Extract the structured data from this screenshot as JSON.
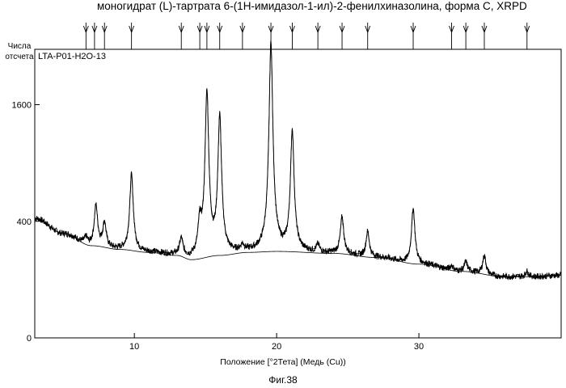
{
  "title": "моногидрат (L)-тартрата 6-(1Н-имидазол-1-ил)-2-фенилхиназолина, форма С, XRPD",
  "caption": "Фиг.38",
  "chart_data": {
    "type": "line",
    "title": "моногидрат (L)-тартрата 6-(1Н-имидазол-1-ил)-2-фенилхиназолина, форма С, XRPD",
    "sample_label": "LTA-P01-H2O-13",
    "xlabel": "Положение [°2Тета] (Медь (Cu))",
    "ylabel": "Числа отсчета",
    "xlim": [
      3,
      40
    ],
    "ylim": [
      0,
      2450
    ],
    "y_scale": "sqrt",
    "xticks": [
      10,
      20,
      30
    ],
    "yticks": [
      0,
      400,
      1600
    ],
    "grid": false,
    "peak_markers": [
      6.6,
      7.2,
      7.9,
      9.8,
      13.3,
      14.6,
      15.1,
      16.0,
      17.6,
      19.6,
      21.1,
      22.9,
      24.6,
      26.4,
      29.6,
      32.3,
      33.3,
      34.6,
      37.6
    ],
    "peaks": [
      {
        "x": 6.6,
        "height": 40
      },
      {
        "x": 7.3,
        "height": 270
      },
      {
        "x": 7.9,
        "height": 150
      },
      {
        "x": 9.8,
        "height": 560
      },
      {
        "x": 13.3,
        "height": 90
      },
      {
        "x": 14.6,
        "height": 190
      },
      {
        "x": 15.1,
        "height": 1600
      },
      {
        "x": 16.0,
        "height": 1250
      },
      {
        "x": 17.6,
        "height": 30
      },
      {
        "x": 19.6,
        "height": 2350
      },
      {
        "x": 21.1,
        "height": 1050
      },
      {
        "x": 22.9,
        "height": 40
      },
      {
        "x": 24.6,
        "height": 220
      },
      {
        "x": 26.4,
        "height": 140
      },
      {
        "x": 29.6,
        "height": 330
      },
      {
        "x": 32.3,
        "height": 20
      },
      {
        "x": 33.3,
        "height": 40
      },
      {
        "x": 34.6,
        "height": 80
      },
      {
        "x": 37.6,
        "height": 20
      }
    ],
    "background": [
      {
        "x": 3,
        "y": 420
      },
      {
        "x": 5,
        "y": 320
      },
      {
        "x": 7,
        "y": 250
      },
      {
        "x": 9,
        "y": 230
      },
      {
        "x": 11,
        "y": 215
      },
      {
        "x": 13,
        "y": 200
      },
      {
        "x": 14,
        "y": 180
      },
      {
        "x": 16,
        "y": 200
      },
      {
        "x": 18,
        "y": 215
      },
      {
        "x": 20,
        "y": 220
      },
      {
        "x": 24,
        "y": 210
      },
      {
        "x": 27,
        "y": 190
      },
      {
        "x": 30,
        "y": 160
      },
      {
        "x": 33,
        "y": 130
      },
      {
        "x": 36,
        "y": 110
      },
      {
        "x": 38,
        "y": 110
      },
      {
        "x": 40,
        "y": 115
      }
    ]
  }
}
